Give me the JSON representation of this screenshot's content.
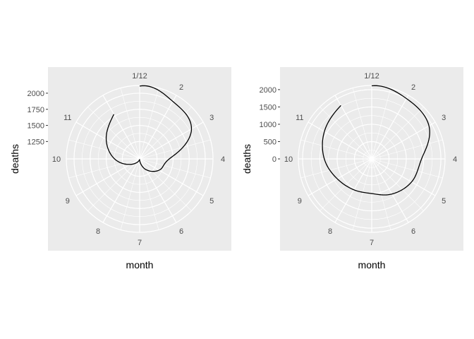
{
  "colors": {
    "panel_bg": "#ebebeb",
    "grid": "#ffffff",
    "line": "#000000",
    "tick_text": "#4d4d4d"
  },
  "chart_data": [
    {
      "type": "line",
      "coord": "polar",
      "xlabel": "month",
      "ylabel": "deaths",
      "theta_labels": [
        "1/12",
        "2",
        "3",
        "4",
        "5",
        "6",
        "7",
        "8",
        "9",
        "10",
        "11"
      ],
      "theta_range": [
        1,
        13
      ],
      "radial_range": [
        980,
        2120
      ],
      "radial_ticks": [
        1250,
        1500,
        1750,
        2000
      ],
      "radial_tick_labels": [
        "1250",
        "1500",
        "1750",
        "2000"
      ],
      "x": [
        1,
        2,
        3,
        4,
        5,
        6,
        7,
        8,
        9,
        10,
        11,
        12
      ],
      "y": [
        2110,
        2010,
        1910,
        1440,
        1330,
        1170,
        1000,
        1030,
        1150,
        1370,
        1580,
        1780
      ]
    },
    {
      "type": "line",
      "coord": "polar",
      "xlabel": "month",
      "ylabel": "deaths",
      "theta_labels": [
        "1/12",
        "2",
        "3",
        "4",
        "5",
        "6",
        "7",
        "8",
        "9",
        "10",
        "11"
      ],
      "theta_range": [
        1,
        13
      ],
      "radial_range": [
        0,
        2120
      ],
      "radial_ticks": [
        0,
        500,
        1000,
        1500,
        2000
      ],
      "radial_tick_labels": [
        "0",
        "500",
        "1000",
        "1500",
        "2000"
      ],
      "x": [
        1,
        2,
        3,
        4,
        5,
        6,
        7,
        8,
        9,
        10,
        11,
        12
      ],
      "y": [
        2110,
        2010,
        1910,
        1440,
        1330,
        1170,
        1000,
        1030,
        1150,
        1370,
        1580,
        1780
      ]
    }
  ]
}
